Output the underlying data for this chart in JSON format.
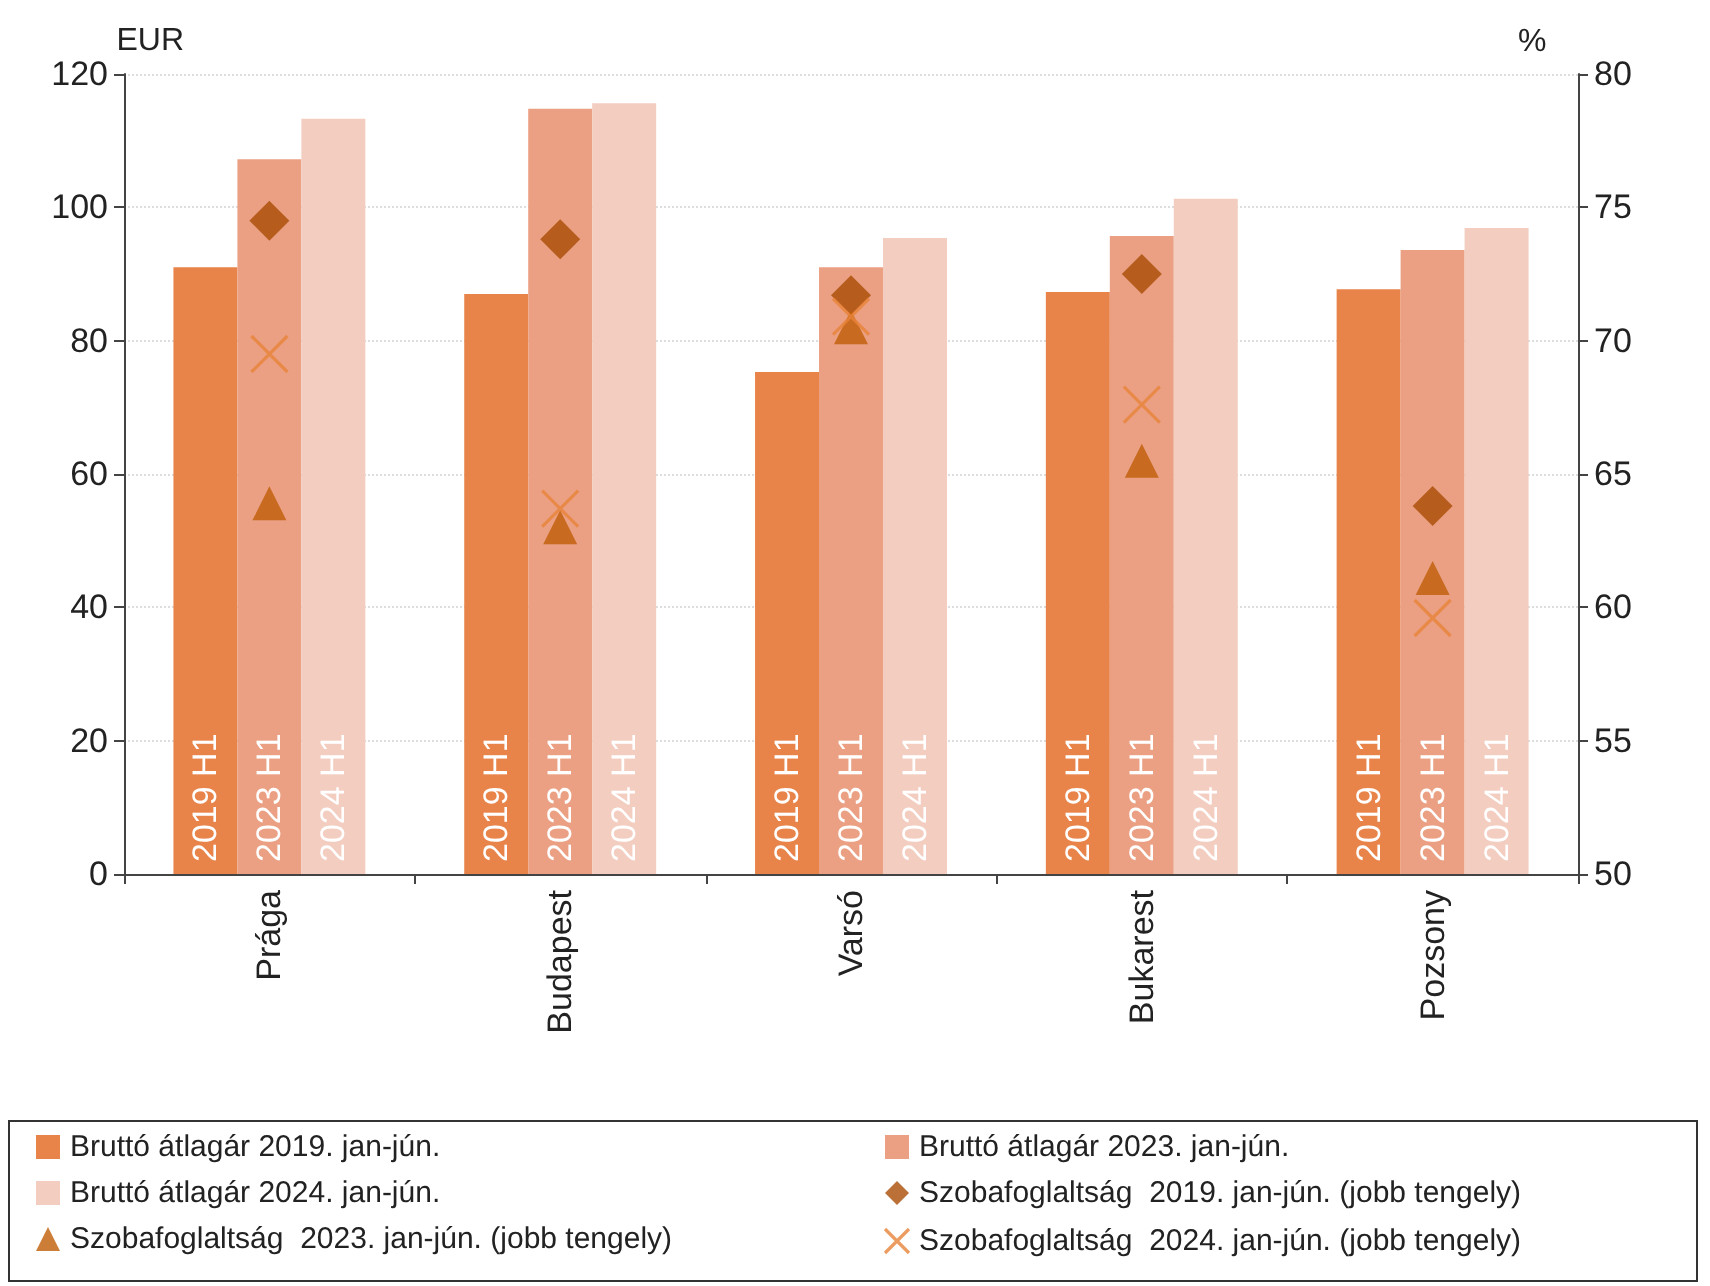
{
  "chart_data": {
    "type": "bar",
    "ylabel": "EUR",
    "y2label": "%",
    "categories": [
      "Prága",
      "Budapest",
      "Varsó",
      "Bukarest",
      "Pozsony"
    ],
    "ylim": [
      0,
      120
    ],
    "yticks": [
      0,
      20,
      40,
      60,
      80,
      100,
      120
    ],
    "y2lim": [
      50,
      80
    ],
    "y2ticks": [
      50,
      55,
      60,
      65,
      70,
      75,
      80
    ],
    "grid": "y",
    "legend": "bottom",
    "series": [
      {
        "name": "Bruttó átlagár 2019. jan-jún.",
        "color": "#e8834a",
        "values": [
          91.0,
          87.0,
          75.3,
          87.3,
          87.7
        ]
      },
      {
        "name": "Bruttó átlagár 2023. jan-jún.",
        "color": "#eba083",
        "values": [
          107.2,
          114.8,
          91.0,
          95.7,
          93.6
        ]
      },
      {
        "name": "Bruttó átlagár 2024. jan-jún.",
        "color": "#f3cdbf",
        "values": [
          113.3,
          115.6,
          95.4,
          101.3,
          96.9
        ]
      },
      {
        "name": "Szobafoglaltság  2019. jan-jún. (jobb tengely)",
        "type": "scatter",
        "axis": "y2",
        "marker": "diamond",
        "color": "#a94c05",
        "x": [
          "Prága",
          "Budapest",
          "Varsó",
          "Bukarest",
          "Pozsony"
        ],
        "values": [
          74.5,
          73.8,
          71.7,
          72.5,
          63.8
        ]
      },
      {
        "name": "Szobafoglaltság  2023. jan-jún. (jobb tengely)",
        "type": "scatter",
        "axis": "y2",
        "marker": "triangle",
        "color": "#bf5d06",
        "x": [
          "Prága",
          "Budapest",
          "Varsó",
          "Bukarest",
          "Pozsony"
        ],
        "values": [
          63.9,
          63.0,
          70.5,
          65.5,
          61.1
        ]
      },
      {
        "name": "Szobafoglaltság  2024. jan-jún. (jobb tengely)",
        "type": "scatter",
        "axis": "y2",
        "marker": "cross",
        "color": "#e8833a",
        "x": [
          "Prága",
          "Budapest",
          "Varsó",
          "Bukarest",
          "Pozsony"
        ],
        "values": [
          69.5,
          63.7,
          70.9,
          67.6,
          59.6
        ]
      }
    ],
    "annotations": [
      "2019 H1",
      "2023 H1",
      "2024 H1",
      "2019 H1",
      "2023 H1",
      "2024 H1",
      "2019 H1",
      "2023 H1",
      "2024 H1",
      "2019 H1",
      "2023 H1",
      "2024 H1",
      "2019 H1",
      "2023 H1",
      "2024 H1"
    ]
  }
}
